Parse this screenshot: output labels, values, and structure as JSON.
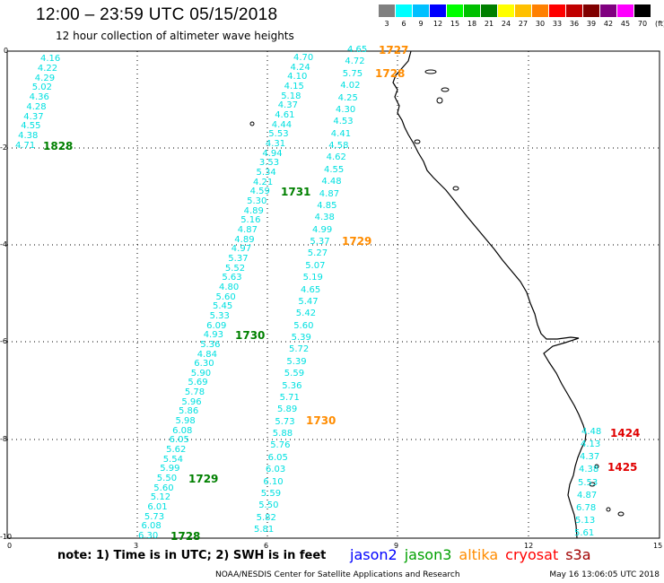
{
  "header": {
    "title": "12:00 – 23:59 UTC 05/15/2018",
    "subtitle": "12 hour collection of altimeter wave heights"
  },
  "colorbar": {
    "unit": "(ft)",
    "labels": [
      "3",
      "6",
      "9",
      "12",
      "15",
      "18",
      "21",
      "24",
      "27",
      "30",
      "33",
      "36",
      "39",
      "42",
      "45",
      "70"
    ],
    "colors": [
      "#808080",
      "#00ffff",
      "#00c0ff",
      "#0000ff",
      "#00ff00",
      "#00c000",
      "#008000",
      "#ffff00",
      "#ffc000",
      "#ff8000",
      "#ff0000",
      "#c00000",
      "#800000",
      "#800080",
      "#ff00ff",
      "#000000"
    ]
  },
  "axes": {
    "x_ticks": [
      "0",
      "3",
      "6",
      "9",
      "12",
      "15"
    ],
    "y_ticks": [
      "0",
      "-2",
      "-4",
      "-6",
      "-8",
      "-10"
    ]
  },
  "tracks": [
    {
      "id": "track-a",
      "values": [
        "4.16",
        "4.22",
        "4.29",
        "5.02",
        "4.36",
        "4.28",
        "4.37",
        "4.55",
        "4.38",
        "4.71"
      ]
    },
    {
      "id": "track-b",
      "values": [
        "4.70",
        "4.24",
        "4.10",
        "4.15",
        "5.18",
        "4.37",
        "4.61",
        "4.44",
        "5.53",
        "4.31",
        "4.94",
        "3.53",
        "5.34",
        "4.21",
        "4.59",
        "5.30",
        "4.89",
        "5.16",
        "4.87",
        "4.89",
        "4.97",
        "5.37",
        "5.52",
        "5.63",
        "4.80",
        "5.60",
        "5.45",
        "5.33",
        "6.09",
        "4.93",
        "5.36",
        "4.84",
        "6.30",
        "5.90",
        "5.69",
        "5.78",
        "5.96",
        "5.86",
        "5.98",
        "6.08",
        "6.05",
        "5.62",
        "5.54",
        "5.99",
        "5.50",
        "5.60",
        "5.12",
        "6.01",
        "5.73",
        "6.08",
        "6.30"
      ]
    },
    {
      "id": "track-c",
      "values": [
        "4.65",
        "4.72",
        "5.75",
        "4.02",
        "4.25",
        "4.30",
        "4.53",
        "4.41",
        "4.58",
        "4.62",
        "4.55",
        "4.48",
        "4.87",
        "4.85",
        "4.38",
        "4.99",
        "5.37",
        "5.27",
        "5.07",
        "5.19",
        "4.65",
        "5.47",
        "5.42",
        "5.60",
        "5.39",
        "5.72",
        "5.39",
        "5.59",
        "5.36",
        "5.71",
        "5.89",
        "5.73",
        "5.88",
        "5.76",
        "6.05",
        "6.03",
        "6.10",
        "5.59",
        "5.50",
        "5.82",
        "5.81"
      ]
    },
    {
      "id": "track-d",
      "values": [
        "4.48",
        "4.13",
        "4.37",
        "4.38",
        "5.53",
        "4.87",
        "6.78",
        "5.13",
        "5.61"
      ]
    }
  ],
  "pass_labels": [
    {
      "text": "1727",
      "color": "#ff8c00"
    },
    {
      "text": "1728",
      "color": "#ff8c00"
    },
    {
      "text": "1828",
      "color": "#008000"
    },
    {
      "text": "1731",
      "color": "#008000"
    },
    {
      "text": "1729",
      "color": "#ff8c00"
    },
    {
      "text": "1730",
      "color": "#008000"
    },
    {
      "text": "1730",
      "color": "#ff8c00"
    },
    {
      "text": "1729",
      "color": "#008000"
    },
    {
      "text": "1728",
      "color": "#008000"
    },
    {
      "text": "1424",
      "color": "#e00000"
    },
    {
      "text": "1425",
      "color": "#e00000"
    }
  ],
  "footer": {
    "note": "note: 1) Time is in UTC; 2) SWH is in feet",
    "legend": [
      {
        "name": "jason2",
        "color": "#0000ff"
      },
      {
        "name": "jason3",
        "color": "#00a000"
      },
      {
        "name": "altika",
        "color": "#ff8c00"
      },
      {
        "name": "cryosat",
        "color": "#ff0000"
      },
      {
        "name": "s3a",
        "color": "#a00000"
      }
    ],
    "credit": "NOAA/NESDIS Center for Satellite Applications and Research",
    "timestamp": "May 16 13:06:05 UTC 2018"
  }
}
